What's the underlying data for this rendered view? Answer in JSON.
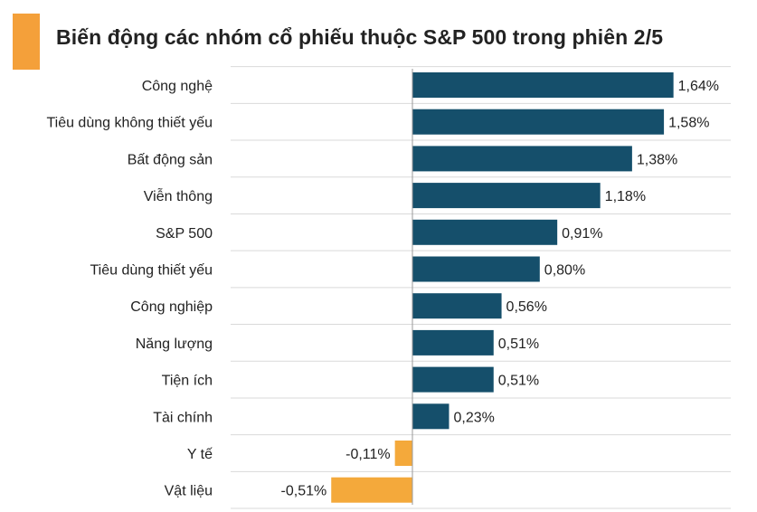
{
  "title": "Biến động các nhóm cổ phiếu thuộc S&P 500 trong phiên 2/5",
  "colors": {
    "positive": "#154f6b",
    "negative": "#f4a93b",
    "accent": "#f4a03a",
    "grid": "#d9d9d9",
    "axis": "#9a9a9a"
  },
  "chart_data": {
    "type": "bar",
    "orientation": "horizontal",
    "categories": [
      "Công nghệ",
      "Tiêu dùng không thiết yếu",
      "Bất động sản",
      "Viễn thông",
      "S&P 500",
      "Tiêu dùng thiết yếu",
      "Công nghiệp",
      "Năng lượng",
      "Tiện ích",
      "Tài chính",
      "Y tế",
      "Vật liệu"
    ],
    "values": [
      1.64,
      1.58,
      1.38,
      1.18,
      0.91,
      0.8,
      0.56,
      0.51,
      0.51,
      0.23,
      -0.11,
      -0.51
    ],
    "labels": [
      "1,64%",
      "1,58%",
      "1,38%",
      "1,18%",
      "0,91%",
      "0,80%",
      "0,56%",
      "0,51%",
      "0,51%",
      "0,23%",
      "-0,11%",
      "-0,51%"
    ],
    "xlim": [
      -0.51,
      1.64
    ],
    "grid": true,
    "legend": "none"
  }
}
